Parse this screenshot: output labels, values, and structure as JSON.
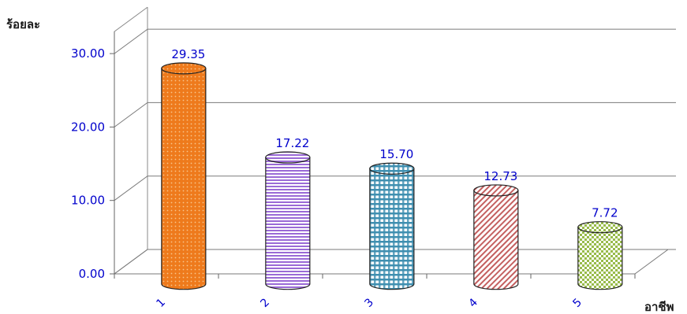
{
  "chart_data": {
    "type": "bar",
    "style": "3d-cylinder",
    "ylabel": "ร้อยละ",
    "xlabel": "อาชีพ",
    "categories": [
      "1",
      "2",
      "3",
      "4",
      "5"
    ],
    "values": [
      29.35,
      17.22,
      15.7,
      12.73,
      7.72
    ],
    "value_labels": [
      "29.35",
      "17.22",
      "15.70",
      "12.73",
      "7.72"
    ],
    "y_ticks": [
      0,
      10,
      20,
      30
    ],
    "y_tick_labels": [
      "0.00",
      "10.00",
      "20.00",
      "30.00"
    ],
    "ylim": [
      0,
      30
    ],
    "grid": true,
    "legend": "none",
    "colors": [
      "#f08020",
      "#a777d9",
      "#5fa0b8",
      "#d07f7f",
      "#a9c760"
    ],
    "text_color": "#0000cc"
  }
}
